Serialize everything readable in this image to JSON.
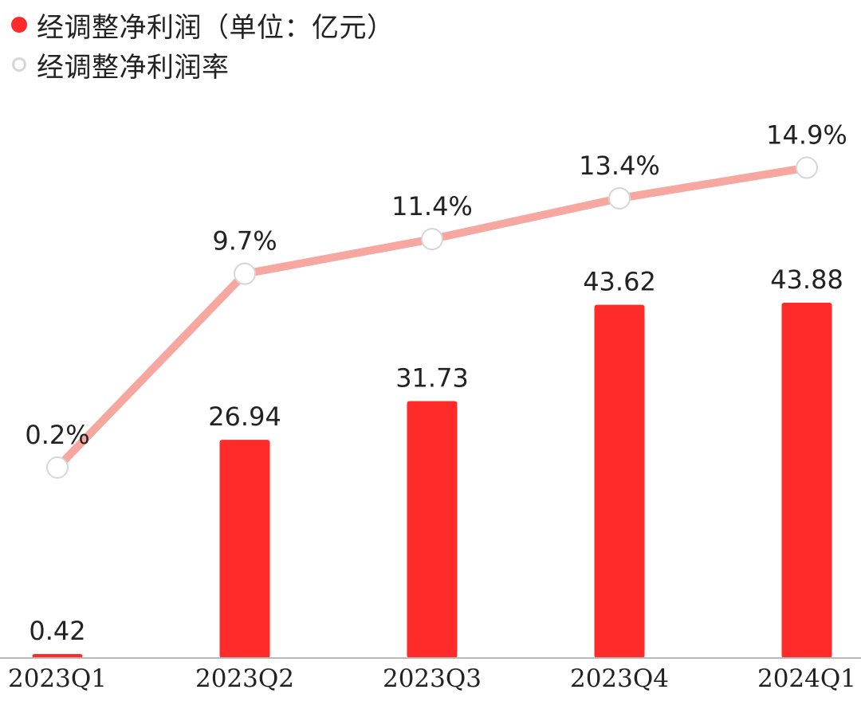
{
  "legend": {
    "bar_label": "经调整净利润（单位：亿元）",
    "line_label": "经调整净利润率"
  },
  "colors": {
    "bar": "#ff2a2a",
    "line": "#f6a7a0",
    "marker_fill": "#ffffff",
    "marker_stroke": "#d6d6d6",
    "axis": "#b9b9b9",
    "text": "#222222"
  },
  "chart_data": {
    "type": "bar",
    "categories": [
      "2023Q1",
      "2023Q2",
      "2023Q3",
      "2023Q4",
      "2024Q1"
    ],
    "series": [
      {
        "name": "经调整净利润（单位：亿元）",
        "type": "bar",
        "values": [
          0.42,
          26.94,
          31.73,
          43.62,
          43.88
        ],
        "labels": [
          "0.42",
          "26.94",
          "31.73",
          "43.62",
          "43.88"
        ]
      },
      {
        "name": "经调整净利润率",
        "type": "line",
        "values": [
          0.2,
          9.7,
          11.4,
          13.4,
          14.9
        ],
        "labels": [
          "0.2%",
          "9.7%",
          "11.4%",
          "13.4%",
          "14.9%"
        ]
      }
    ],
    "legend_position": "top-left",
    "grid": false
  }
}
